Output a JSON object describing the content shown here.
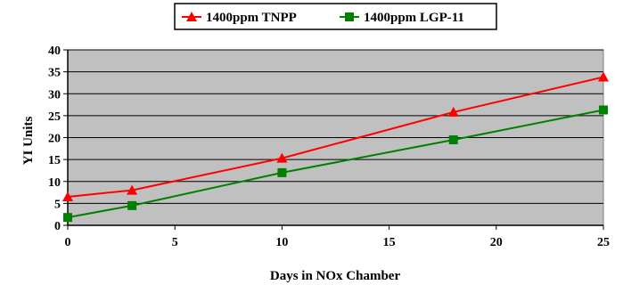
{
  "chart_data": {
    "type": "line",
    "title": "",
    "xlabel": "Days in NOx Chamber",
    "ylabel": "YI Units",
    "xlim": [
      0,
      25
    ],
    "ylim": [
      0,
      40
    ],
    "xticks": [
      0,
      5,
      10,
      15,
      20,
      25
    ],
    "yticks": [
      0,
      5,
      10,
      15,
      20,
      25,
      30,
      35,
      40
    ],
    "grid": "horizontal",
    "plot_background": "#c0c0c0",
    "legend_position": "top-center",
    "series": [
      {
        "name": "1400ppm TNPP",
        "color": "#ff0000",
        "marker": "triangle",
        "x": [
          0,
          3,
          10,
          18,
          25
        ],
        "y": [
          6.5,
          8,
          15.3,
          25.8,
          33.8
        ]
      },
      {
        "name": "1400ppm LGP-11",
        "color": "#008000",
        "marker": "square",
        "x": [
          0,
          3,
          10,
          18,
          25
        ],
        "y": [
          1.8,
          4.5,
          12,
          19.5,
          26.3
        ]
      }
    ]
  }
}
